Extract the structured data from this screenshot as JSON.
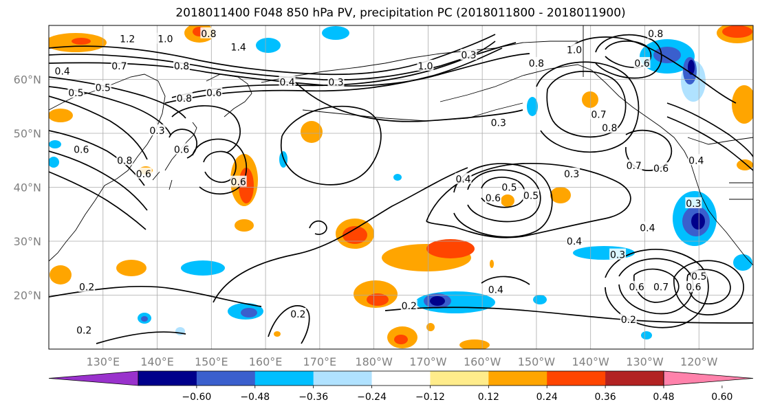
{
  "title": "2018011400 F048 850 hPa PV, precipitation PC (2018011800 - 2018011900)",
  "map": {
    "lon_range": [
      120,
      250
    ],
    "lat_range": [
      10,
      70
    ],
    "lat_ticks": [
      {
        "value": 60,
        "label": "60°N"
      },
      {
        "value": 50,
        "label": "50°N"
      },
      {
        "value": 40,
        "label": "40°N"
      },
      {
        "value": 30,
        "label": "30°N"
      },
      {
        "value": 20,
        "label": "20°N"
      }
    ],
    "lon_ticks": [
      {
        "value": 130,
        "label": "130°E"
      },
      {
        "value": 140,
        "label": "140°E"
      },
      {
        "value": 150,
        "label": "150°E"
      },
      {
        "value": 160,
        "label": "160°E"
      },
      {
        "value": 170,
        "label": "170°E"
      },
      {
        "value": 180,
        "label": "180°W"
      },
      {
        "value": 190,
        "label": "170°W"
      },
      {
        "value": 200,
        "label": "160°W"
      },
      {
        "value": 210,
        "label": "150°W"
      },
      {
        "value": 220,
        "label": "140°W"
      },
      {
        "value": 230,
        "label": "130°W"
      },
      {
        "value": 240,
        "label": "120°W"
      }
    ],
    "grid": true,
    "pv_contour_labels": [
      {
        "text": "1.2",
        "lon": 134.5,
        "lat": 67.5
      },
      {
        "text": "1.0",
        "lon": 141.5,
        "lat": 67.5
      },
      {
        "text": "0.8",
        "lon": 149.5,
        "lat": 68.5
      },
      {
        "text": "1.4",
        "lon": 155,
        "lat": 66
      },
      {
        "text": "0.8",
        "lon": 144.5,
        "lat": 62.5
      },
      {
        "text": "0.7",
        "lon": 133,
        "lat": 62.5
      },
      {
        "text": "0.4",
        "lon": 122.5,
        "lat": 61.5
      },
      {
        "text": "0.5",
        "lon": 130,
        "lat": 58.5
      },
      {
        "text": "0.5",
        "lon": 125,
        "lat": 57.5
      },
      {
        "text": "0.8",
        "lon": 145,
        "lat": 56.5
      },
      {
        "text": "0.6",
        "lon": 150.5,
        "lat": 57.5
      },
      {
        "text": "0.4",
        "lon": 164,
        "lat": 59.5
      },
      {
        "text": "0.3",
        "lon": 173,
        "lat": 59.5
      },
      {
        "text": "1.0",
        "lon": 189.5,
        "lat": 62.5
      },
      {
        "text": "0.3",
        "lon": 197.5,
        "lat": 64.5
      },
      {
        "text": "0.8",
        "lon": 210,
        "lat": 63
      },
      {
        "text": "1.0",
        "lon": 217,
        "lat": 65.5
      },
      {
        "text": "0.6",
        "lon": 229.5,
        "lat": 63
      },
      {
        "text": "0.8",
        "lon": 232,
        "lat": 68.5
      },
      {
        "text": "0.7",
        "lon": 221.5,
        "lat": 53.5
      },
      {
        "text": "0.8",
        "lon": 223.5,
        "lat": 51
      },
      {
        "text": "0.3",
        "lon": 203,
        "lat": 52
      },
      {
        "text": "0.3",
        "lon": 140,
        "lat": 50.5
      },
      {
        "text": "0.6",
        "lon": 144.5,
        "lat": 47
      },
      {
        "text": "0.6",
        "lon": 126,
        "lat": 47
      },
      {
        "text": "0.8",
        "lon": 134,
        "lat": 45
      },
      {
        "text": "0.6",
        "lon": 137.5,
        "lat": 42.5
      },
      {
        "text": "0.6",
        "lon": 155,
        "lat": 41
      },
      {
        "text": "0.4",
        "lon": 196.5,
        "lat": 41.5
      },
      {
        "text": "0.5",
        "lon": 205,
        "lat": 40
      },
      {
        "text": "0.6",
        "lon": 202,
        "lat": 38
      },
      {
        "text": "0.5",
        "lon": 209,
        "lat": 38.5
      },
      {
        "text": "0.3",
        "lon": 216.5,
        "lat": 42.5
      },
      {
        "text": "0.7",
        "lon": 228,
        "lat": 44
      },
      {
        "text": "0.6",
        "lon": 233,
        "lat": 43.5
      },
      {
        "text": "0.4",
        "lon": 239.5,
        "lat": 45
      },
      {
        "text": "0.3",
        "lon": 239,
        "lat": 37
      },
      {
        "text": "0.4",
        "lon": 230.5,
        "lat": 32.5
      },
      {
        "text": "0.4",
        "lon": 217,
        "lat": 30
      },
      {
        "text": "0.3",
        "lon": 225,
        "lat": 27.5
      },
      {
        "text": "0.5",
        "lon": 240,
        "lat": 23.5
      },
      {
        "text": "0.6",
        "lon": 228.5,
        "lat": 21.5
      },
      {
        "text": "0.7",
        "lon": 233,
        "lat": 21.5
      },
      {
        "text": "0.6",
        "lon": 239,
        "lat": 21.5
      },
      {
        "text": "0.4",
        "lon": 202.5,
        "lat": 21
      },
      {
        "text": "0.2",
        "lon": 127,
        "lat": 21.5
      },
      {
        "text": "0.2",
        "lon": 186.5,
        "lat": 18
      },
      {
        "text": "0.2",
        "lon": 166,
        "lat": 16.5
      },
      {
        "text": "0.2",
        "lon": 227,
        "lat": 15.5
      },
      {
        "text": "0.2",
        "lon": 126.5,
        "lat": 13.5
      }
    ]
  },
  "colorbar": {
    "colors": [
      "#9932CC",
      "#00008B",
      "#3A5FCD",
      "#00BFFF",
      "#B0E2FF",
      "#FFFFFF",
      "#FFEC8B",
      "#FFA500",
      "#FF4500",
      "#B22222",
      "#FF82AB"
    ],
    "ticks": [
      "−0.60",
      "−0.48",
      "−0.36",
      "−0.24",
      "−0.12",
      "0.12",
      "0.24",
      "0.36",
      "0.48",
      "0.60"
    ],
    "extend": "both"
  }
}
